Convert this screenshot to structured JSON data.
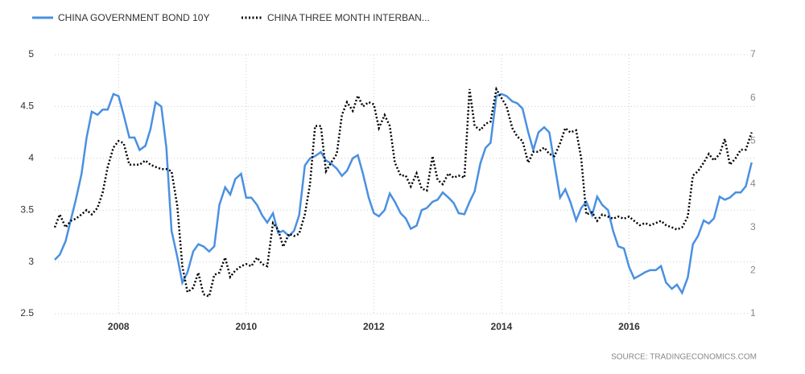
{
  "chart_data": {
    "type": "line",
    "source": "SOURCE: TRADINGECONOMICS.COM",
    "x": [
      2007,
      2007.08,
      2007.17,
      2007.25,
      2007.33,
      2007.42,
      2007.5,
      2007.58,
      2007.67,
      2007.75,
      2007.83,
      2007.92,
      2008,
      2008.08,
      2008.17,
      2008.25,
      2008.33,
      2008.42,
      2008.5,
      2008.58,
      2008.67,
      2008.75,
      2008.83,
      2008.92,
      2009,
      2009.08,
      2009.17,
      2009.25,
      2009.33,
      2009.42,
      2009.5,
      2009.58,
      2009.67,
      2009.75,
      2009.83,
      2009.92,
      2010,
      2010.08,
      2010.17,
      2010.25,
      2010.33,
      2010.42,
      2010.5,
      2010.58,
      2010.67,
      2010.75,
      2010.83,
      2010.92,
      2011,
      2011.08,
      2011.17,
      2011.25,
      2011.33,
      2011.42,
      2011.5,
      2011.58,
      2011.67,
      2011.75,
      2011.83,
      2011.92,
      2012,
      2012.08,
      2012.17,
      2012.25,
      2012.33,
      2012.42,
      2012.5,
      2012.58,
      2012.67,
      2012.75,
      2012.83,
      2012.92,
      2013,
      2013.08,
      2013.17,
      2013.25,
      2013.33,
      2013.42,
      2013.5,
      2013.58,
      2013.67,
      2013.75,
      2013.83,
      2013.92,
      2014,
      2014.08,
      2014.17,
      2014.25,
      2014.33,
      2014.42,
      2014.5,
      2014.58,
      2014.67,
      2014.75,
      2014.83,
      2014.92,
      2015,
      2015.08,
      2015.17,
      2015.25,
      2015.33,
      2015.42,
      2015.5,
      2015.58,
      2015.67,
      2015.75,
      2015.83,
      2015.92,
      2016,
      2016.08,
      2016.17,
      2016.25,
      2016.33,
      2016.42,
      2016.5,
      2016.58,
      2016.67,
      2016.75,
      2016.83,
      2016.92,
      2017,
      2017.08,
      2017.17,
      2017.25,
      2017.33,
      2017.42,
      2017.5,
      2017.58,
      2017.67,
      2017.75,
      2017.83,
      2017.92
    ],
    "series": [
      {
        "name": "CHINA GOVERNMENT BOND 10Y",
        "color": "#4a90e2",
        "dash": false,
        "values": [
          3.02,
          3.07,
          3.2,
          3.4,
          3.6,
          3.85,
          4.2,
          4.45,
          4.42,
          4.47,
          4.47,
          4.62,
          4.6,
          4.42,
          4.2,
          4.2,
          4.08,
          4.12,
          4.28,
          4.54,
          4.5,
          4.1,
          3.3,
          3.05,
          2.8,
          2.9,
          3.1,
          3.17,
          3.15,
          3.1,
          3.15,
          3.55,
          3.72,
          3.65,
          3.8,
          3.85,
          3.62,
          3.62,
          3.55,
          3.45,
          3.38,
          3.47,
          3.28,
          3.3,
          3.25,
          3.3,
          3.45,
          3.93,
          4.0,
          4.02,
          4.06,
          3.98,
          3.95,
          3.9,
          3.83,
          3.88,
          4.0,
          4.03,
          3.85,
          3.62,
          3.47,
          3.44,
          3.5,
          3.66,
          3.58,
          3.47,
          3.42,
          3.32,
          3.35,
          3.5,
          3.52,
          3.58,
          3.6,
          3.67,
          3.62,
          3.57,
          3.47,
          3.46,
          3.58,
          3.68,
          3.95,
          4.1,
          4.15,
          4.6,
          4.62,
          4.6,
          4.55,
          4.53,
          4.48,
          4.25,
          4.08,
          4.25,
          4.3,
          4.25,
          3.95,
          3.62,
          3.7,
          3.58,
          3.4,
          3.52,
          3.58,
          3.45,
          3.63,
          3.55,
          3.5,
          3.3,
          3.15,
          3.13,
          2.95,
          2.84,
          2.87,
          2.9,
          2.92,
          2.92,
          2.96,
          2.8,
          2.74,
          2.78,
          2.7,
          2.85,
          3.17,
          3.25,
          3.4,
          3.37,
          3.42,
          3.63,
          3.6,
          3.62,
          3.67,
          3.67,
          3.73,
          3.96
        ]
      },
      {
        "name": "CHINA THREE MONTH INTERBAN...",
        "color": "#000000",
        "dash": true,
        "axis": "y2",
        "values": [
          3.0,
          3.3,
          3.0,
          3.15,
          3.2,
          3.3,
          3.4,
          3.3,
          3.45,
          3.8,
          4.4,
          4.85,
          5.0,
          4.95,
          4.45,
          4.45,
          4.45,
          4.55,
          4.45,
          4.4,
          4.35,
          4.35,
          4.3,
          3.5,
          2.1,
          1.5,
          1.6,
          1.95,
          1.45,
          1.4,
          1.9,
          1.95,
          2.3,
          1.85,
          2.0,
          2.1,
          2.15,
          2.1,
          2.3,
          2.15,
          2.1,
          3.1,
          2.95,
          2.55,
          2.85,
          2.8,
          2.85,
          3.3,
          4.0,
          5.35,
          5.35,
          4.3,
          4.5,
          4.7,
          5.6,
          5.9,
          5.7,
          6.05,
          5.8,
          5.9,
          5.85,
          5.3,
          5.6,
          5.35,
          4.5,
          4.2,
          4.2,
          3.95,
          4.25,
          3.9,
          3.85,
          4.65,
          4.1,
          4.0,
          4.25,
          4.15,
          4.2,
          4.15,
          6.2,
          5.35,
          5.25,
          5.4,
          5.45,
          6.2,
          6.0,
          5.8,
          5.3,
          5.1,
          5.0,
          4.5,
          4.75,
          4.75,
          4.85,
          4.7,
          4.65,
          4.95,
          5.3,
          5.2,
          5.25,
          4.6,
          3.3,
          3.35,
          3.15,
          3.3,
          3.25,
          3.2,
          3.25,
          3.2,
          3.25,
          3.15,
          3.05,
          3.1,
          3.05,
          3.1,
          3.15,
          3.05,
          3.0,
          2.95,
          3.0,
          3.25,
          4.2,
          4.3,
          4.5,
          4.7,
          4.55,
          4.7,
          5.05,
          4.45,
          4.6,
          4.8,
          4.8,
          5.2
        ]
      }
    ],
    "xlim": [
      2007,
      2018
    ],
    "xticks": [
      2008,
      2010,
      2012,
      2014,
      2016
    ],
    "ylim": [
      2.5,
      5
    ],
    "yticks": [
      2.5,
      3,
      3.5,
      4,
      4.5,
      5
    ],
    "y2lim": [
      1,
      7
    ],
    "y2ticks": [
      1,
      2,
      3,
      4,
      5,
      6,
      7
    ],
    "grid": true
  }
}
